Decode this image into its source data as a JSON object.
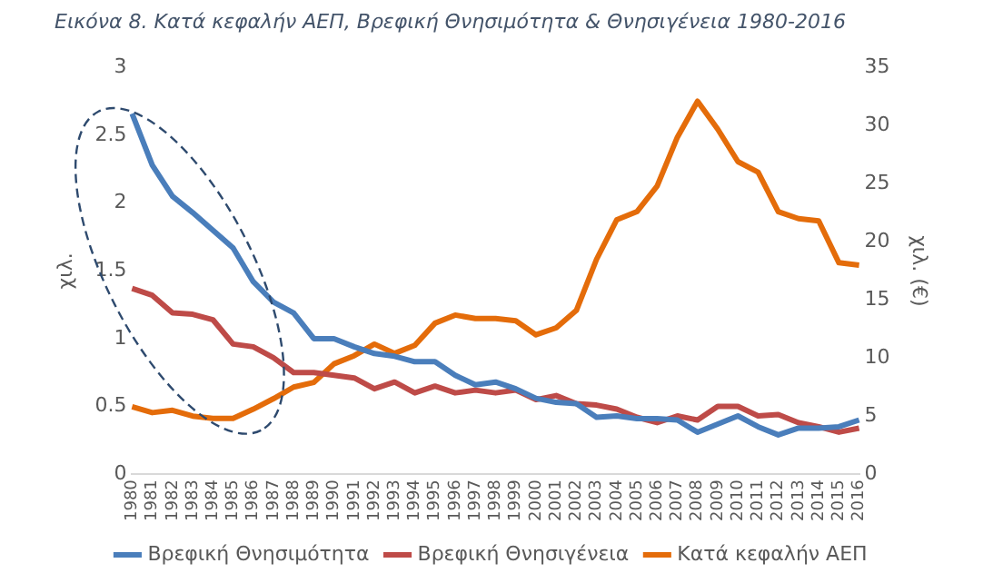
{
  "chart_data": {
    "type": "line",
    "title": "Εικόνα 8. Κατά κεφαλήν ΑΕΠ, Βρεφική Θνησιμότητα & Θνησιγένεια 1980-2016",
    "ylabel": "χιλ.",
    "y2label": "χιλ. (€)",
    "categories": [
      "1980",
      "1981",
      "1982",
      "1983",
      "1984",
      "1985",
      "1986",
      "1987",
      "1988",
      "1989",
      "1990",
      "1991",
      "1992",
      "1993",
      "1994",
      "1995",
      "1996",
      "1997",
      "1998",
      "1999",
      "2000",
      "2001",
      "2002",
      "2003",
      "2004",
      "2005",
      "2006",
      "2007",
      "2008",
      "2009",
      "2010",
      "2011",
      "2012",
      "2013",
      "2014",
      "2015",
      "2016"
    ],
    "series": [
      {
        "name": "Βρεφική Θνησιμότητα",
        "color": "#4a7ebb",
        "values": [
          2.66,
          2.28,
          2.05,
          1.93,
          1.8,
          1.67,
          1.42,
          1.27,
          1.19,
          1.0,
          1.0,
          0.94,
          0.89,
          0.87,
          0.83,
          0.83,
          0.73,
          0.66,
          0.68,
          0.63,
          0.56,
          0.53,
          0.52,
          0.42,
          0.43,
          0.41,
          0.41,
          0.4,
          0.31,
          0.37,
          0.43,
          0.35,
          0.29,
          0.34,
          0.34,
          0.35,
          0.4
        ]
      },
      {
        "name": "Βρεφική Θνησιγένεια",
        "color": "#be4b48",
        "values": [
          1.37,
          1.32,
          1.19,
          1.18,
          1.14,
          0.96,
          0.94,
          0.86,
          0.75,
          0.75,
          0.73,
          0.71,
          0.63,
          0.68,
          0.6,
          0.65,
          0.6,
          0.62,
          0.6,
          0.62,
          0.55,
          0.58,
          0.52,
          0.51,
          0.48,
          0.42,
          0.38,
          0.43,
          0.4,
          0.5,
          0.5,
          0.43,
          0.44,
          0.38,
          0.35,
          0.31,
          0.34
        ]
      },
      {
        "name": "Κατά κεφαλήν ΑΕΠ",
        "color": "#e46c0a",
        "axis": "y2",
        "values": [
          5.8,
          5.3,
          5.5,
          5.0,
          4.8,
          4.8,
          5.6,
          6.5,
          7.5,
          7.9,
          9.5,
          10.2,
          11.2,
          10.4,
          11.1,
          13.0,
          13.7,
          13.4,
          13.4,
          13.2,
          12.0,
          12.6,
          14.1,
          18.5,
          21.9,
          22.6,
          24.8,
          29.0,
          32.1,
          29.7,
          26.9,
          26.0,
          22.6,
          22.0,
          21.8,
          18.2,
          18.0
        ]
      }
    ],
    "ylim": [
      0,
      3
    ],
    "yticks": [
      0,
      0.5,
      1,
      1.5,
      2,
      2.5,
      3
    ],
    "y2lim": [
      0,
      35
    ],
    "y2ticks": [
      0,
      5,
      10,
      15,
      20,
      25,
      30,
      35
    ],
    "grid": false,
    "legend": "bottom",
    "marker": "none",
    "line_style": "solid"
  }
}
